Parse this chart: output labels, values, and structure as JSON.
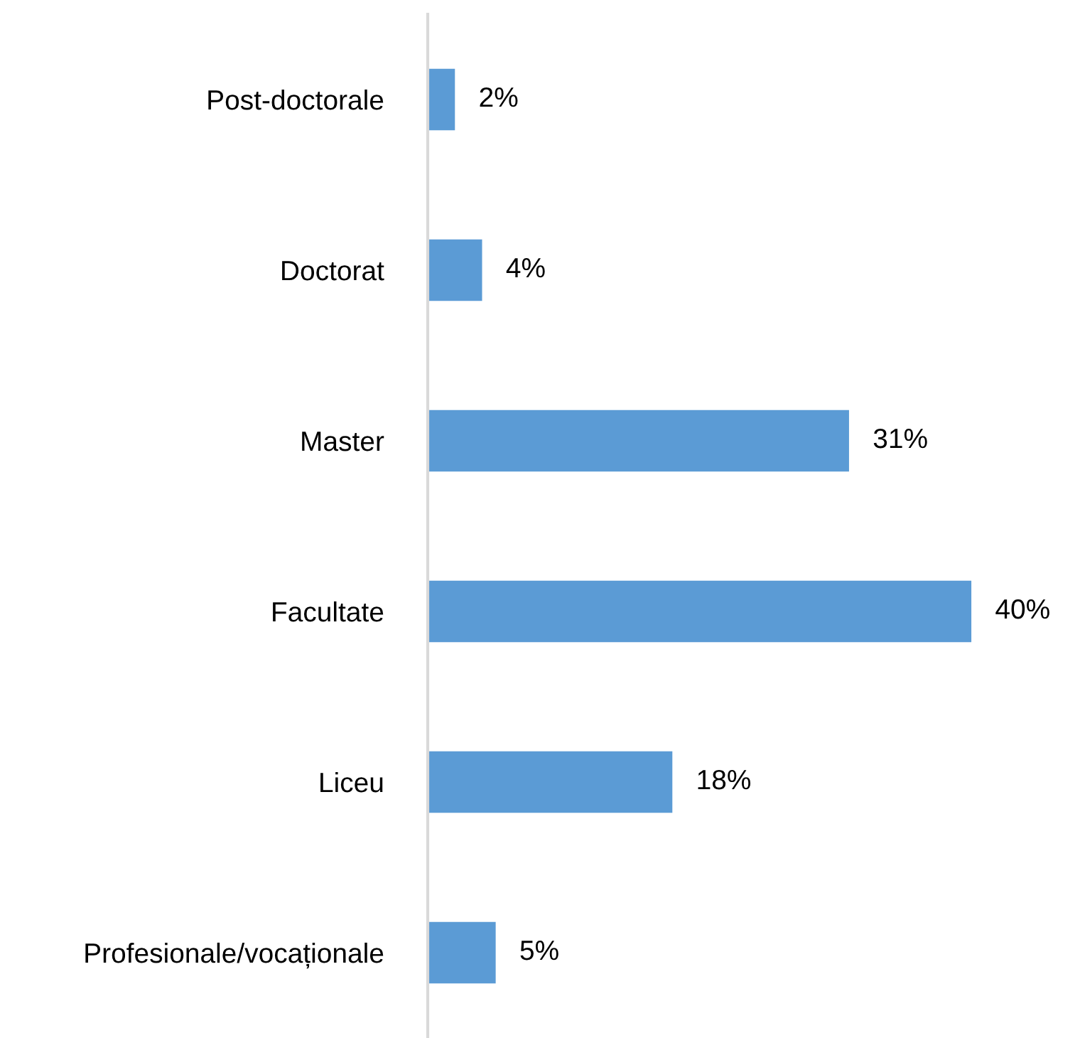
{
  "chart_data": {
    "type": "bar",
    "orientation": "horizontal",
    "categories": [
      "Post-doctorale",
      "Doctorat",
      "Master",
      "Facultate",
      "Liceu",
      "Profesionale/vocaționale"
    ],
    "values": [
      2,
      4,
      31,
      40,
      18,
      5
    ],
    "value_labels": [
      "2%",
      "4%",
      "31%",
      "40%",
      "18%",
      "5%"
    ],
    "color": "#5b9bd5",
    "grid": false,
    "legend": false,
    "tick_labels": "y"
  }
}
